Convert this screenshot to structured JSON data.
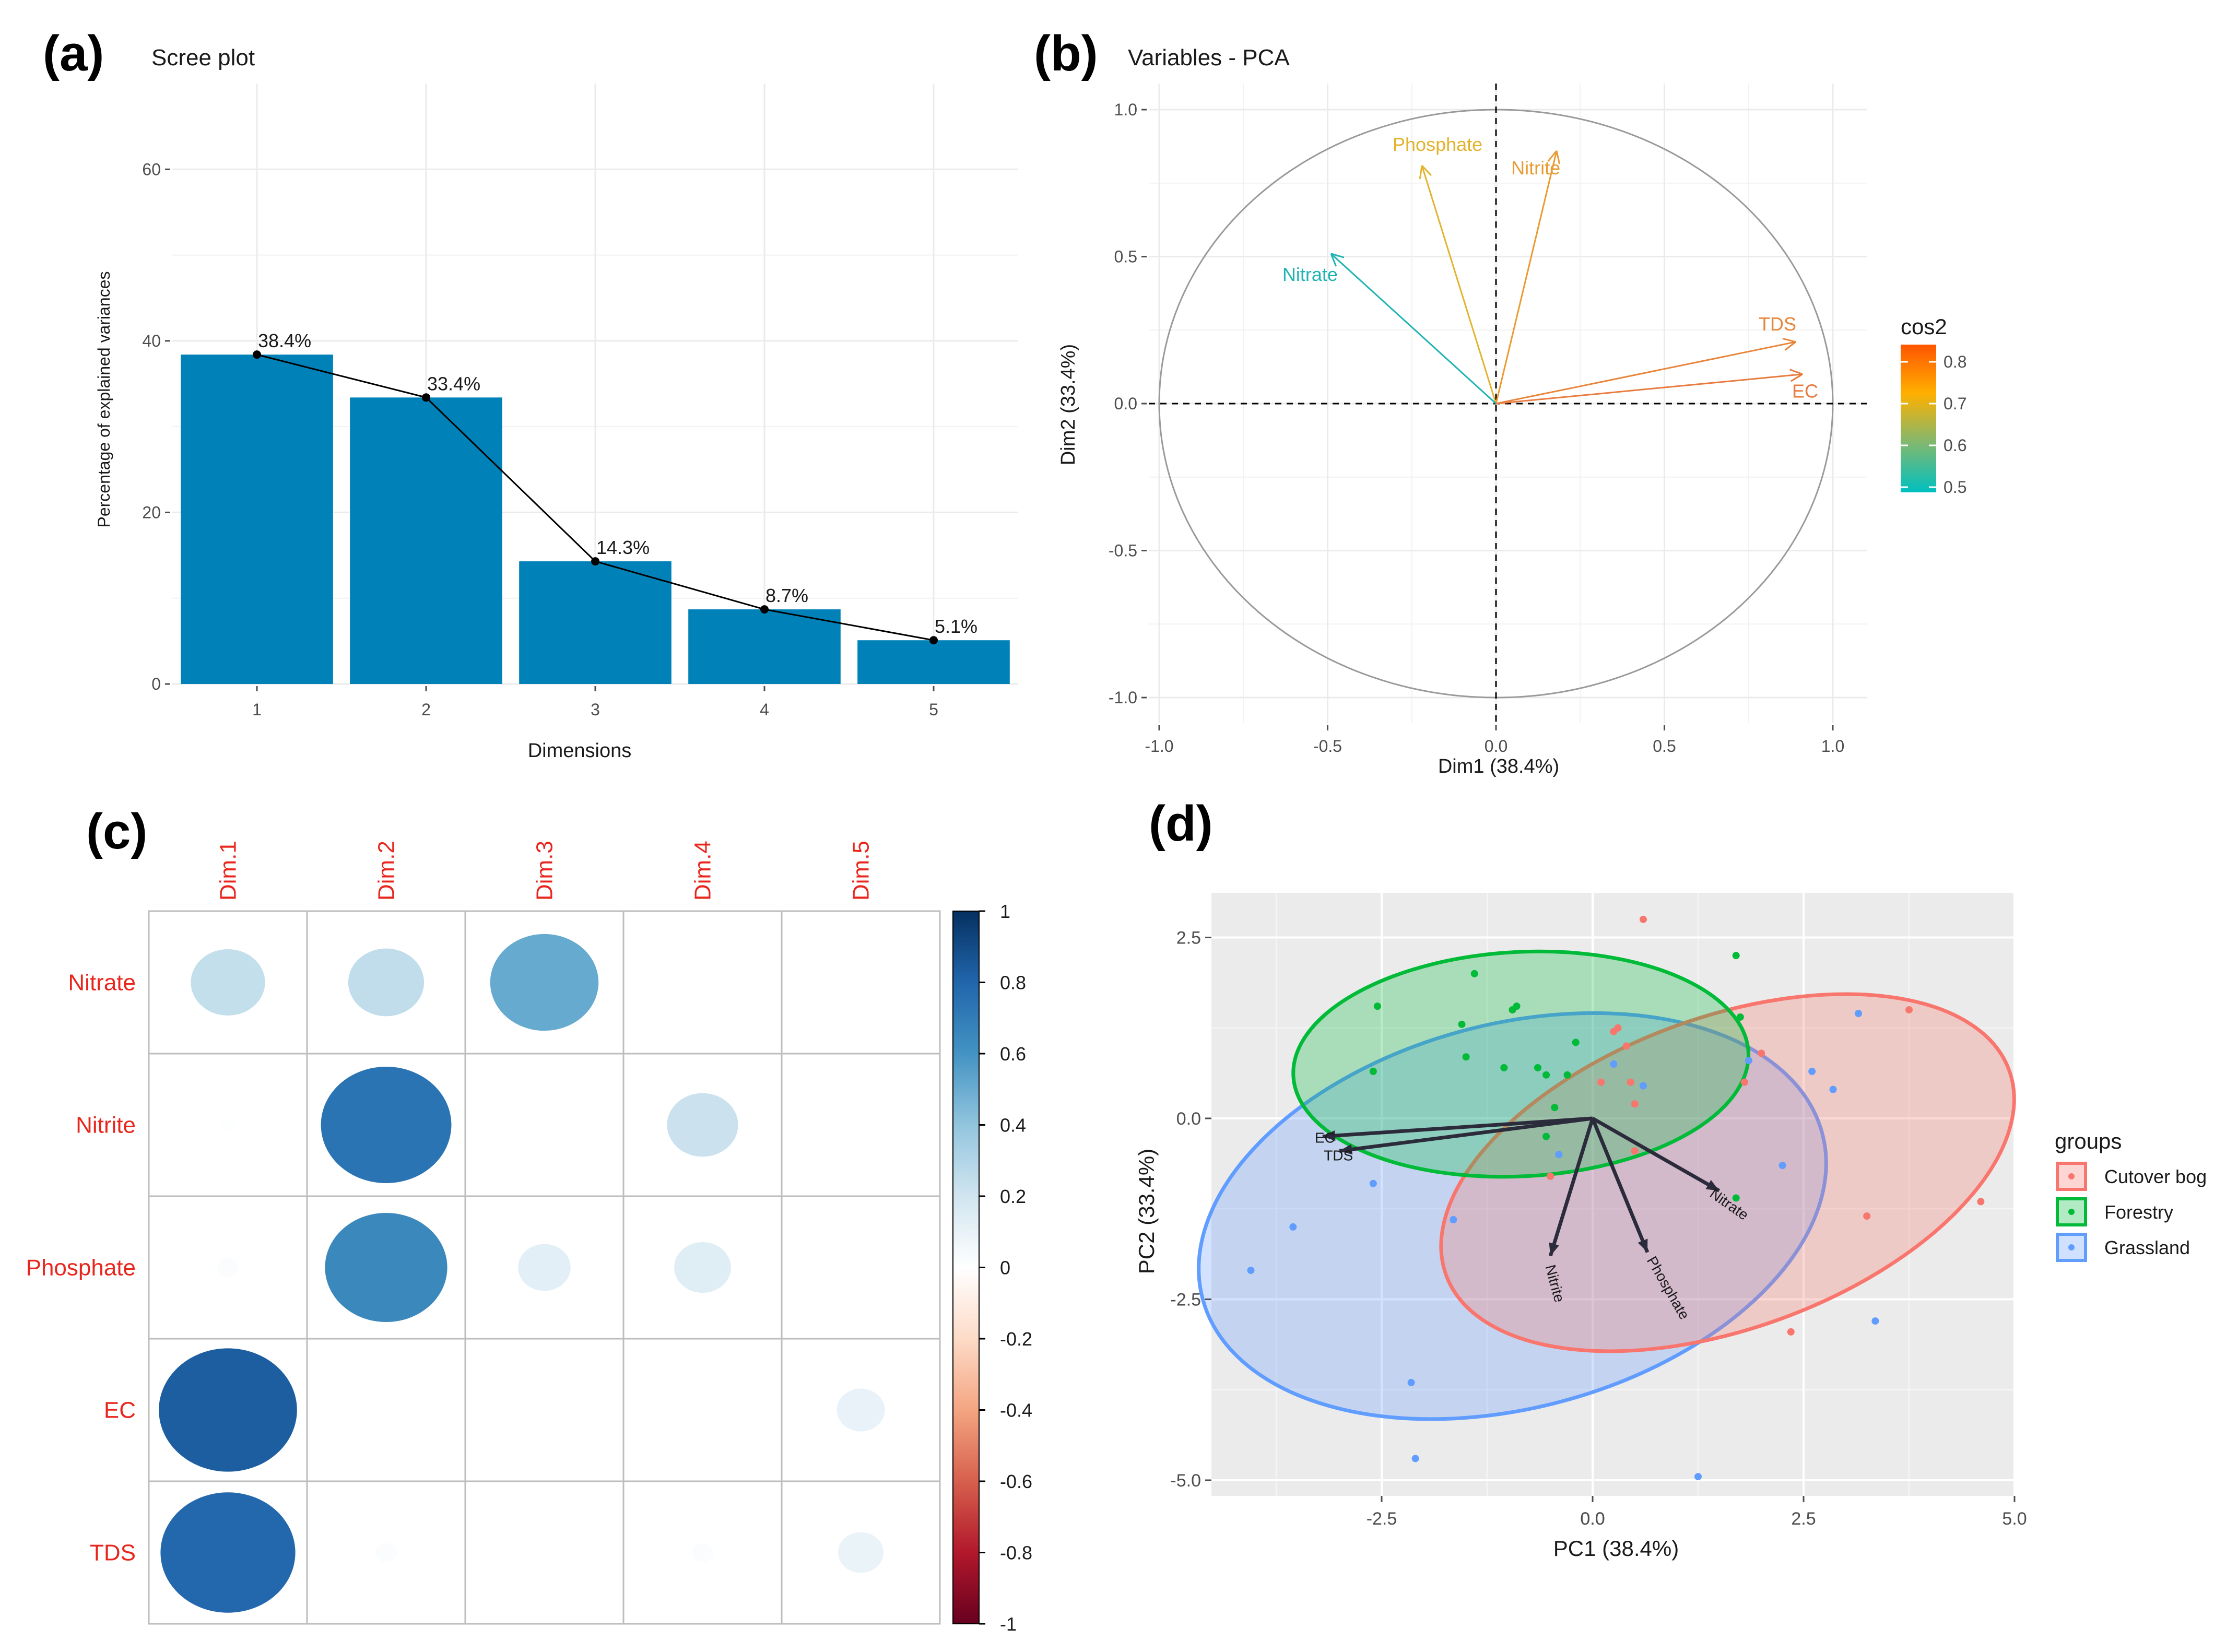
{
  "panels": {
    "a": "(a)",
    "b": "(b)",
    "c": "(c)",
    "d": "(d)"
  },
  "chart_data": [
    {
      "id": "scree",
      "type": "bar",
      "title": "Scree plot",
      "xlabel": "Dimensions",
      "ylabel": "Percentage of explained variances",
      "categories": [
        "1",
        "2",
        "3",
        "4",
        "5"
      ],
      "values": [
        38.4,
        33.4,
        14.3,
        8.7,
        5.1
      ],
      "data_labels": [
        "38.4%",
        "33.4%",
        "14.3%",
        "8.7%",
        "5.1%"
      ],
      "ylim": [
        0,
        70
      ],
      "yticks": [
        0,
        20,
        40,
        60
      ],
      "bar_color": "#0082b8",
      "line_overlay": true
    },
    {
      "id": "varpca",
      "type": "scatter",
      "title": "Variables - PCA",
      "xlabel": "Dim1 (38.4%)",
      "ylabel": "Dim2 (33.4%)",
      "xlim": [
        -1.0,
        1.0
      ],
      "ylim": [
        -1.0,
        1.0
      ],
      "xticks": [
        -1.0,
        -0.5,
        0.0,
        0.5,
        1.0
      ],
      "yticks": [
        -1.0,
        -0.5,
        0.0,
        0.5,
        1.0
      ],
      "tick_labels": [
        "-1.0",
        "-0.5",
        "0.0",
        "0.5",
        "1.0"
      ],
      "variables": [
        {
          "name": "Phosphate",
          "x": -0.22,
          "y": 0.81,
          "cos2": 0.69,
          "color": "#e3b32c"
        },
        {
          "name": "Nitrite",
          "x": 0.18,
          "y": 0.86,
          "cos2": 0.76,
          "color": "#ea9a30"
        },
        {
          "name": "Nitrate",
          "x": -0.49,
          "y": 0.51,
          "cos2": 0.5,
          "color": "#1fb3b3"
        },
        {
          "name": "TDS",
          "x": 0.89,
          "y": 0.21,
          "cos2": 0.83,
          "color": "#e8853a"
        },
        {
          "name": "EC",
          "x": 0.91,
          "y": 0.1,
          "cos2": 0.84,
          "color": "#e87b3e"
        }
      ],
      "legend": {
        "title": "cos2",
        "ticks": [
          "0.8",
          "0.7",
          "0.6",
          "0.5"
        ],
        "colors": [
          "#ff5500",
          "#ffb000",
          "#80b870",
          "#00c0c0"
        ]
      }
    },
    {
      "id": "corrplot",
      "type": "heatmap",
      "rows": [
        "Nitrate",
        "Nitrite",
        "Phosphate",
        "EC",
        "TDS"
      ],
      "cols": [
        "Dim.1",
        "Dim.2",
        "Dim.3",
        "Dim.4",
        "Dim.5"
      ],
      "values": [
        [
          0.24,
          0.25,
          0.51,
          0.0,
          0.0
        ],
        [
          0.01,
          0.74,
          0.0,
          0.22,
          0.0
        ],
        [
          0.02,
          0.65,
          0.12,
          0.14,
          0.0
        ],
        [
          0.83,
          0.0,
          0.0,
          0.0,
          0.1
        ],
        [
          0.79,
          0.02,
          0.0,
          0.02,
          0.09
        ]
      ],
      "colorbar_ticks": [
        "1",
        "0.8",
        "0.6",
        "0.4",
        "0.2",
        "0",
        "-0.2",
        "-0.4",
        "-0.6",
        "-0.8",
        "-1"
      ]
    },
    {
      "id": "biplot",
      "type": "scatter",
      "xlabel": "PC1 (38.4%)",
      "ylabel": "PC2 (33.4%)",
      "xlim": [
        -4.7,
        5.1
      ],
      "ylim": [
        -5.3,
        2.9
      ],
      "xticks": [
        -2.5,
        0.0,
        2.5,
        5.0
      ],
      "xtick_labels": [
        "-2.5",
        "0.0",
        "2.5",
        "5.0"
      ],
      "yticks": [
        2.5,
        0.0,
        -2.5,
        -5.0
      ],
      "ytick_labels": [
        "2.5",
        "0.0",
        "-2.5",
        "-5.0"
      ],
      "legend_title": "groups",
      "groups": [
        {
          "name": "Cutover bog",
          "color": "#f8766d",
          "ellipse": {
            "cx": 1.6,
            "cy": -0.75,
            "rx": 3.55,
            "ry": 2.15,
            "angle": -20
          },
          "points": [
            [
              0.6,
              2.75
            ],
            [
              3.75,
              1.5
            ],
            [
              4.6,
              -1.15
            ],
            [
              3.25,
              -1.35
            ],
            [
              2.35,
              -2.95
            ],
            [
              -0.5,
              -0.8
            ],
            [
              0.5,
              -0.45
            ],
            [
              0.25,
              1.2
            ],
            [
              0.45,
              0.5
            ],
            [
              0.4,
              1.0
            ],
            [
              0.1,
              0.5
            ],
            [
              1.8,
              0.5
            ],
            [
              0.5,
              0.2
            ],
            [
              0.3,
              1.25
            ],
            [
              2.0,
              0.9
            ]
          ]
        },
        {
          "name": "Forestry",
          "color": "#00ba38",
          "ellipse": {
            "cx": -0.85,
            "cy": 0.75,
            "rx": 2.7,
            "ry": 1.55,
            "angle": -3
          },
          "points": [
            [
              1.7,
              2.25
            ],
            [
              -1.4,
              2.0
            ],
            [
              -2.55,
              1.55
            ],
            [
              -0.9,
              1.55
            ],
            [
              -0.95,
              1.5
            ],
            [
              -1.55,
              1.3
            ],
            [
              -1.5,
              0.85
            ],
            [
              -0.2,
              1.05
            ],
            [
              -2.6,
              0.65
            ],
            [
              -1.05,
              0.7
            ],
            [
              -0.55,
              0.6
            ],
            [
              -0.3,
              0.6
            ],
            [
              -0.45,
              0.15
            ],
            [
              1.75,
              1.4
            ],
            [
              1.7,
              -1.1
            ],
            [
              -0.55,
              -0.25
            ],
            [
              -0.65,
              0.7
            ]
          ]
        },
        {
          "name": "Grassland",
          "color": "#619cff",
          "ellipse": {
            "cx": -0.95,
            "cy": -1.35,
            "rx": 3.8,
            "ry": 2.65,
            "angle": -15
          },
          "points": [
            [
              3.15,
              1.45
            ],
            [
              2.6,
              0.65
            ],
            [
              2.85,
              0.4
            ],
            [
              2.25,
              -0.65
            ],
            [
              -2.6,
              -0.9
            ],
            [
              -3.55,
              -1.5
            ],
            [
              -4.05,
              -2.1
            ],
            [
              -1.65,
              -1.4
            ],
            [
              -2.15,
              -3.65
            ],
            [
              -2.1,
              -4.7
            ],
            [
              1.25,
              -4.95
            ],
            [
              3.35,
              -2.8
            ],
            [
              -0.4,
              -0.5
            ],
            [
              1.85,
              0.8
            ],
            [
              0.25,
              0.75
            ],
            [
              0.6,
              0.45
            ]
          ]
        }
      ],
      "arrows": [
        {
          "name": "EC",
          "x": -3.2,
          "y": -0.25
        },
        {
          "name": "TDS",
          "x": -3.0,
          "y": -0.45
        },
        {
          "name": "Nitrite",
          "x": -0.5,
          "y": -1.9
        },
        {
          "name": "Phosphate",
          "x": 0.65,
          "y": -1.85
        },
        {
          "name": "Nitrate",
          "x": 1.5,
          "y": -1.0
        }
      ]
    }
  ]
}
